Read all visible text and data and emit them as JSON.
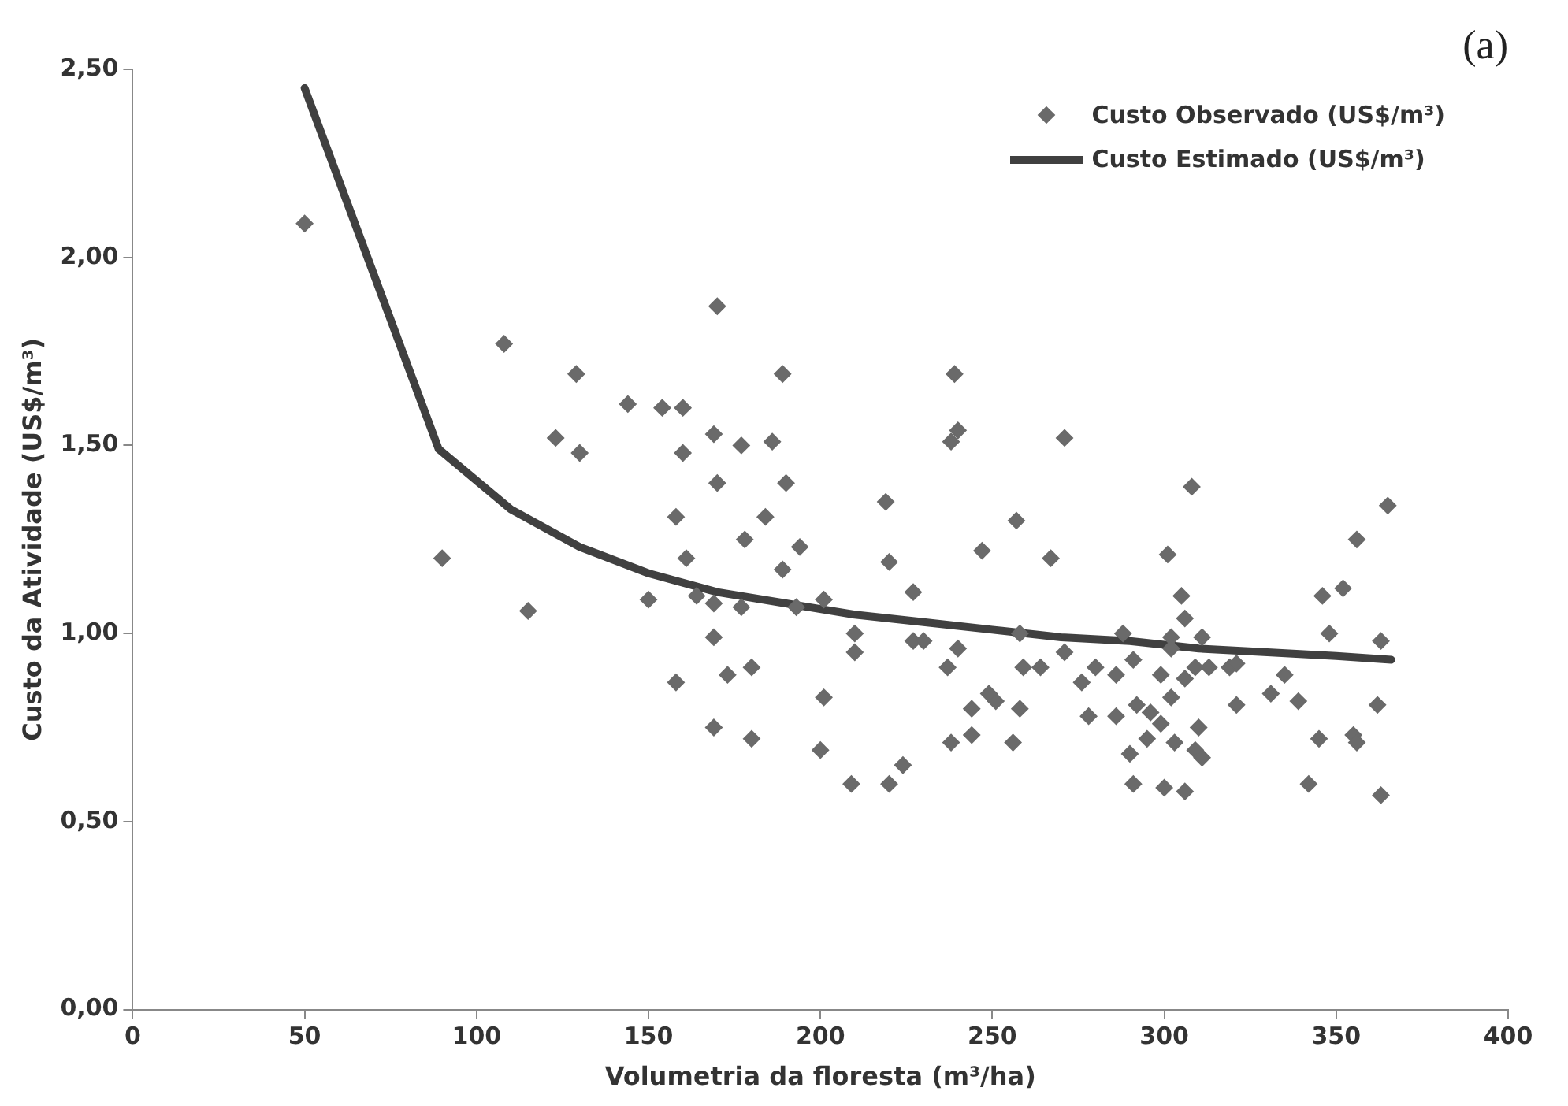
{
  "chart_data": {
    "type": "scatter",
    "xlabel": "Volumetria da floresta (m³/ha)",
    "ylabel": "Custo da Atividade (US$/m³)",
    "annotations": [
      "(a)"
    ],
    "xlim": [
      0,
      400
    ],
    "xticks": [
      0,
      50,
      100,
      150,
      200,
      250,
      300,
      350,
      400
    ],
    "ylim": [
      0,
      2.5
    ],
    "yticks": [
      {
        "value": 0,
        "label": "0,00"
      },
      {
        "value": 0.5,
        "label": "0,50"
      },
      {
        "value": 1,
        "label": "1,00"
      },
      {
        "value": 1.5,
        "label": "1,50"
      },
      {
        "value": 2,
        "label": "2,00"
      },
      {
        "value": 2.5,
        "label": "2,50"
      }
    ],
    "grid": false,
    "legend": "top right",
    "series": [
      {
        "name": "Custo Observado (US$/m³)",
        "marker": "diamond",
        "color": "#6a6a6a",
        "x": [
          50,
          90,
          108,
          115,
          129,
          123,
          130,
          170,
          189,
          239,
          144,
          154,
          160,
          169,
          177,
          186,
          160,
          240,
          238,
          170,
          190,
          158,
          184,
          219,
          257,
          178,
          194,
          161,
          189,
          220,
          247,
          150,
          164,
          169,
          177,
          193,
          201,
          227,
          210,
          210,
          227,
          230,
          240,
          169,
          258,
          237,
          180,
          173,
          158,
          201,
          249,
          251,
          244,
          258,
          169,
          180,
          200,
          238,
          244,
          256,
          209,
          220,
          224,
          271,
          308,
          365,
          356,
          267,
          301,
          346,
          352,
          305,
          306,
          348,
          363,
          288,
          302,
          311,
          271,
          302,
          259,
          264,
          280,
          291,
          286,
          299,
          306,
          309,
          313,
          319,
          321,
          276,
          335,
          331,
          339,
          292,
          296,
          299,
          302,
          321,
          362,
          278,
          286,
          310,
          295,
          303,
          309,
          311,
          290,
          345,
          355,
          356,
          291,
          300,
          306,
          342,
          363
        ],
        "values": [
          2.09,
          1.2,
          1.77,
          1.06,
          1.69,
          1.52,
          1.48,
          1.87,
          1.69,
          1.69,
          1.61,
          1.6,
          1.6,
          1.53,
          1.5,
          1.51,
          1.48,
          1.54,
          1.51,
          1.4,
          1.4,
          1.31,
          1.31,
          1.35,
          1.3,
          1.25,
          1.23,
          1.2,
          1.17,
          1.19,
          1.22,
          1.09,
          1.1,
          1.08,
          1.07,
          1.07,
          1.09,
          1.11,
          1.0,
          0.95,
          0.98,
          0.98,
          0.96,
          0.99,
          1.0,
          0.91,
          0.91,
          0.89,
          0.87,
          0.83,
          0.84,
          0.82,
          0.8,
          0.8,
          0.75,
          0.72,
          0.69,
          0.71,
          0.73,
          0.71,
          0.6,
          0.6,
          0.65,
          1.52,
          1.39,
          1.34,
          1.25,
          1.2,
          1.21,
          1.1,
          1.12,
          1.1,
          1.04,
          1.0,
          0.98,
          1.0,
          0.99,
          0.99,
          0.95,
          0.96,
          0.91,
          0.91,
          0.91,
          0.93,
          0.89,
          0.89,
          0.88,
          0.91,
          0.91,
          0.91,
          0.92,
          0.87,
          0.89,
          0.84,
          0.82,
          0.81,
          0.79,
          0.76,
          0.83,
          0.81,
          0.81,
          0.78,
          0.78,
          0.75,
          0.72,
          0.71,
          0.69,
          0.67,
          0.68,
          0.72,
          0.73,
          0.71,
          0.6,
          0.59,
          0.58,
          0.6,
          0.57
        ]
      },
      {
        "name": "Custo Estimado (US$/m³)",
        "type": "line",
        "marker": "none",
        "color": "#404040",
        "x": [
          50,
          89,
          110,
          130,
          150,
          170,
          190,
          210,
          230,
          250,
          270,
          290,
          310,
          330,
          350,
          366
        ],
        "values": [
          2.45,
          1.49,
          1.33,
          1.23,
          1.16,
          1.11,
          1.08,
          1.05,
          1.03,
          1.01,
          0.99,
          0.98,
          0.96,
          0.95,
          0.94,
          0.93
        ]
      }
    ]
  }
}
